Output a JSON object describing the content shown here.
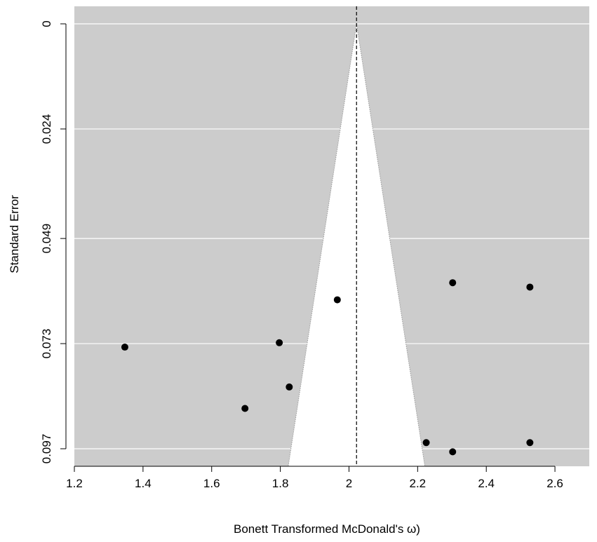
{
  "chart_data": {
    "type": "scatter",
    "subtype": "funnel-plot",
    "title": "",
    "xlabel": "Bonett Transformed McDonald's ω)",
    "ylabel": "Standard Error",
    "xlim": [
      1.2,
      2.7
    ],
    "ylim": [
      0,
      0.101
    ],
    "y_reversed": true,
    "x_ticks": [
      1.2,
      1.4,
      1.6,
      1.8,
      2.0,
      2.2,
      2.4,
      2.6
    ],
    "x_tick_labels": [
      "1.2",
      "1.4",
      "1.6",
      "1.8",
      "2",
      "2.2",
      "2.4",
      "2.6"
    ],
    "y_ticks": [
      0,
      0.024,
      0.049,
      0.073,
      0.097
    ],
    "y_tick_labels": [
      "0",
      "0.024",
      "0.049",
      "0.073",
      "0.097"
    ],
    "grid": "horizontal",
    "background_color": "#cccccc",
    "funnel_fill_color": "#ffffff",
    "point_color": "#000000",
    "funnel": {
      "center": 2.022,
      "apex_se": 0,
      "base_se": 0.101,
      "base_left": 1.823,
      "base_right": 2.221
    },
    "points": [
      {
        "x": 1.347,
        "y": 0.0738
      },
      {
        "x": 1.697,
        "y": 0.0878
      },
      {
        "x": 1.797,
        "y": 0.0728
      },
      {
        "x": 1.826,
        "y": 0.0829
      },
      {
        "x": 1.966,
        "y": 0.063
      },
      {
        "x": 2.225,
        "y": 0.0956
      },
      {
        "x": 2.302,
        "y": 0.0591
      },
      {
        "x": 2.302,
        "y": 0.0977
      },
      {
        "x": 2.527,
        "y": 0.0601
      },
      {
        "x": 2.527,
        "y": 0.0956
      }
    ]
  }
}
